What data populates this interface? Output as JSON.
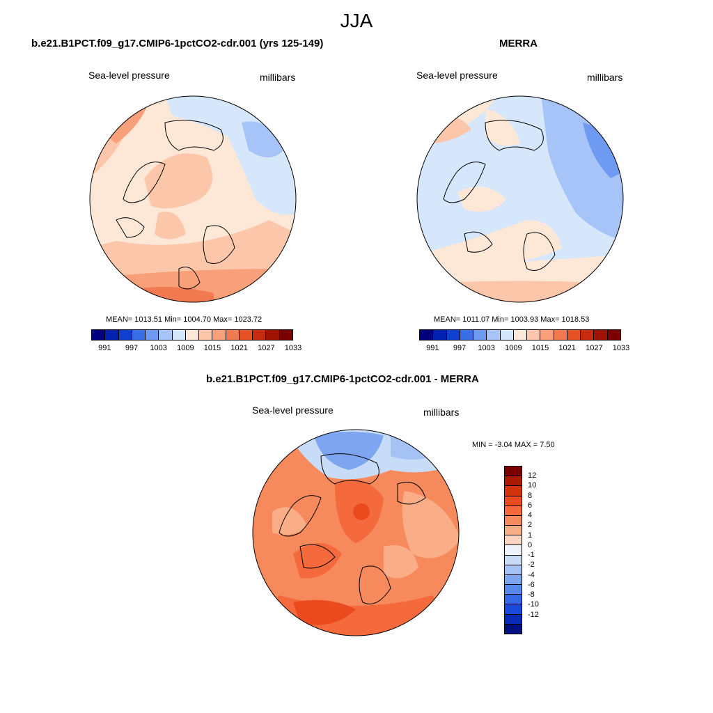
{
  "season": "JJA",
  "panels": {
    "model": {
      "title": "b.e21.B1PCT.f09_g17.CMIP6-1pctCO2-cdr.001 (yrs 125-149)",
      "variable": "Sea-level pressure",
      "units": "millibars",
      "stats": "MEAN= 1013.51   Min= 1004.70   Max= 1023.72"
    },
    "obs": {
      "title": "MERRA",
      "variable": "Sea-level pressure",
      "units": "millibars",
      "stats": "MEAN= 1011.07   Min= 1003.93   Max= 1018.53"
    },
    "diff": {
      "title": "b.e21.B1PCT.f09_g17.CMIP6-1pctCO2-cdr.001 - MERRA",
      "variable": "Sea-level pressure",
      "units": "millibars",
      "stats": "MIN =  -3.04 MAX =   7.50"
    }
  },
  "colorbar_abs": {
    "colors": [
      "#00007f",
      "#0020b0",
      "#1040d0",
      "#3a6ee8",
      "#6f9af2",
      "#a6c4f8",
      "#d6e6fb",
      "#fde8d8",
      "#fbc6aa",
      "#f7a07a",
      "#f27a50",
      "#e45226",
      "#c82a10",
      "#a01204",
      "#7a0000"
    ],
    "labels": [
      "991",
      "997",
      "1003",
      "1009",
      "1015",
      "1021",
      "1027",
      "1033"
    ]
  },
  "colorbar_diff": {
    "colors": [
      "#7a0000",
      "#aa1a04",
      "#d2340e",
      "#ea4a1e",
      "#f46a3c",
      "#f68a5c",
      "#f9ae88",
      "#fcd6c0",
      "#eef3fb",
      "#c8dcf7",
      "#a4c2f4",
      "#7ea6f0",
      "#5888ec",
      "#3468e6",
      "#1a48d8",
      "#0a2ab8",
      "#00107f"
    ],
    "labels": [
      "12",
      "10",
      "8",
      "6",
      "4",
      "2",
      "1",
      "0",
      "-1",
      "-2",
      "-4",
      "-6",
      "-8",
      "-10",
      "-12"
    ]
  }
}
